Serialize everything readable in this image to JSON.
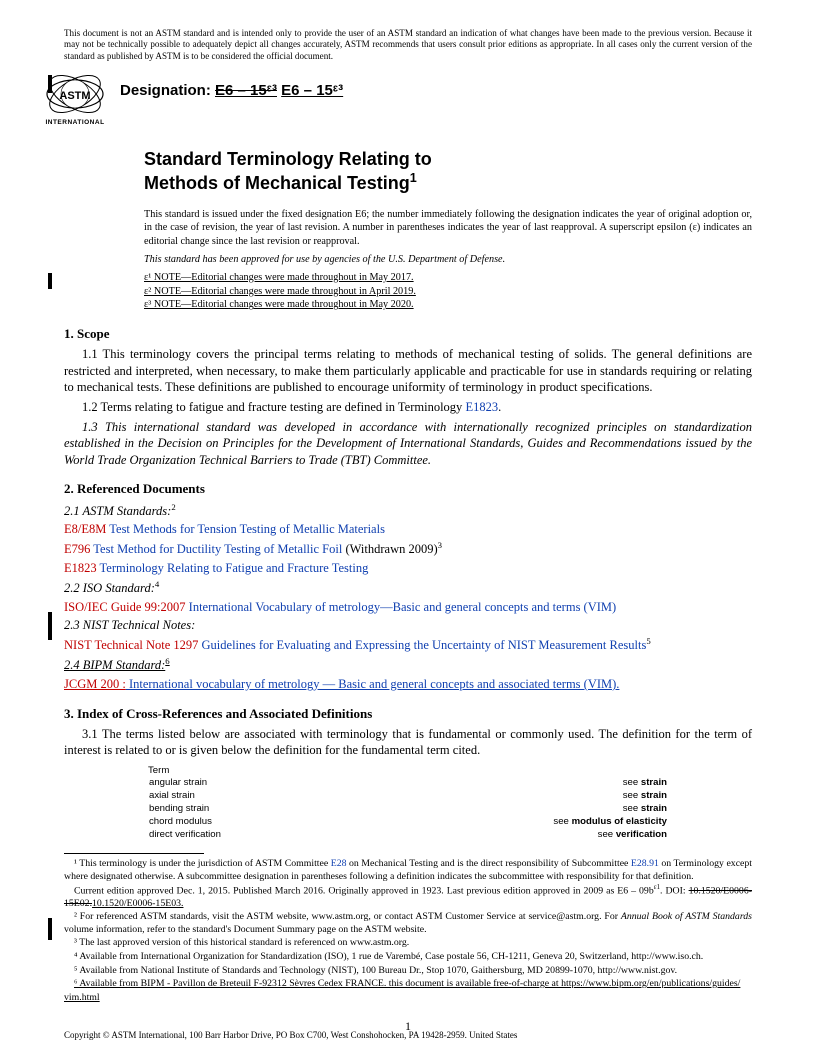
{
  "disclaimer": "This document is not an ASTM standard and is intended only to provide the user of an ASTM standard an indication of what changes have been made to the previous version. Because it may not be technically possible to adequately depict all changes accurately, ASTM recommends that users consult prior editions as appropriate. In all cases only the current version of the standard as published by ASTM is to be considered the official document.",
  "logo_text_top": "ASTM",
  "logo_text_bottom": "INTERNATIONAL",
  "designation_label": "Designation: ",
  "designation_old": "E6 – 15ᵋ³",
  "designation_new": "E6 – 15ᵋ³",
  "title_line1": "Standard Terminology Relating to",
  "title_line2": "Methods of Mechanical Testing",
  "title_sup": "1",
  "issuance": "This standard is issued under the fixed designation E6; the number immediately following the designation indicates the year of original adoption or, in the case of revision, the year of last revision. A number in parentheses indicates the year of last reapproval. A superscript epsilon (ε) indicates an editorial change since the last revision or reapproval.",
  "dod": "This standard has been approved for use by agencies of the U.S. Department of Defense.",
  "eps1": "ε¹ NOTE—Editorial changes were made throughout in May 2017.",
  "eps2": "ε² NOTE—Editorial changes were made throughout in April 2019.",
  "eps3": "ε³ NOTE—Editorial changes were made throughout in May 2020.",
  "sec1_h": "1.  Scope",
  "sec1_1": "1.1  This terminology covers the principal terms relating to methods of mechanical testing of solids. The general definitions are restricted and interpreted, when necessary, to make them particularly applicable and practicable for use in standards requiring or relating to mechanical tests. These definitions are published to encourage uniformity of terminology in product specifications.",
  "sec1_2a": "1.2  Terms relating to fatigue and fracture testing are defined in Terminology ",
  "sec1_2b": "E1823",
  "sec1_2c": ".",
  "sec1_3": "1.3  This international standard was developed in accordance with internationally recognized principles on standardization established in the Decision on Principles for the Development of International Standards, Guides and Recommendations issued by the World Trade Organization Technical Barriers to Trade (TBT) Committee.",
  "sec2_h": "2.  Referenced Documents",
  "ref21": "2.1  ASTM Standards:",
  "ref21_sup": "2",
  "r_e8_code": "E8/E8M",
  "r_e8_title": " Test Methods for Tension Testing of Metallic Materials",
  "r_e796_code": "E796",
  "r_e796_title": " Test Method for Ductility Testing of Metallic Foil",
  "r_e796_tail": " (Withdrawn 2009)",
  "r_e796_sup": "3",
  "r_e1823_code": "E1823",
  "r_e1823_title": " Terminology Relating to Fatigue and Fracture Testing",
  "ref22": "2.2  ISO Standard:",
  "ref22_sup": "4",
  "r_iso_code": "ISO/IEC Guide 99:2007",
  "r_iso_title": " International Vocabulary of metrology—Basic and general concepts and terms (VIM)",
  "ref23": "2.3  NIST Technical Notes:",
  "r_nist_code": "NIST Technical Note 1297",
  "r_nist_title": " Guidelines for Evaluating and Expressing the Uncertainty of NIST Measurement Results",
  "r_nist_sup": "5",
  "ref24": "2.4  BIPM Standard:",
  "ref24_sup": "6",
  "r_jcgm_code": "JCGM 200 :",
  "r_jcgm_title": " International vocabulary of metrology — Basic and general concepts and associated terms (VIM).",
  "sec3_h": "3.   Index of Cross-References and Associated Definitions",
  "sec3_1": "3.1  The terms listed below are associated with terminology that is fundamental or commonly used. The definition for the term of interest is related to or is given below the definition for the fundamental term cited.",
  "xref_hdr": "Term",
  "xref_rows": [
    {
      "term": "angular strain",
      "see": "see ",
      "target": "strain"
    },
    {
      "term": "axial strain",
      "see": "see ",
      "target": "strain"
    },
    {
      "term": "bending strain",
      "see": "see ",
      "target": "strain"
    },
    {
      "term": "chord modulus",
      "see": "see ",
      "target": "modulus of elasticity"
    },
    {
      "term": "direct verification",
      "see": "see ",
      "target": "verification"
    }
  ],
  "fn1a": "¹ This terminology is under the jurisdiction of ASTM Committee ",
  "fn1_link1": "E28",
  "fn1b": " on Mechanical Testing and is the direct responsibility of Subcommittee ",
  "fn1_link2": "E28.91",
  "fn1c": " on Terminology except where designated otherwise. A subcommittee designation in parentheses following a definition indicates the subcommittee with responsibility for that definition.",
  "fn1d_a": "Current edition approved Dec. 1, 2015. Published March 2016. Originally approved in 1923. Last previous edition approved in 2009 as E6 – 09b",
  "fn1d_b": "ε1",
  "fn1d_c": ". DOI: ",
  "fn1d_old": "10.1520/E0006-15E02.",
  "fn1d_new": "10.1520/E0006-15E03.",
  "fn2": "² For referenced ASTM standards, visit the ASTM website, www.astm.org, or contact ASTM Customer Service at service@astm.org. For Annual Book of ASTM Standards volume information, refer to the standard's Document Summary page on the ASTM website.",
  "fn2_ital": "Annual Book of ASTM Standards",
  "fn3": "³ The last approved version of this historical standard is referenced on www.astm.org.",
  "fn4": "⁴ Available from International Organization for Standardization (ISO), 1 rue de Varembé, Case postale 56, CH-1211, Geneva 20, Switzerland, http://www.iso.ch.",
  "fn5": "⁵ Available from National Institute of Standards and Technology (NIST), 100 Bureau Dr., Stop 1070, Gaithersburg, MD 20899-1070, http://www.nist.gov.",
  "fn6a": "⁶ Available from BIPM - Pavillon de Breteuil F-92312 Sèvres Cedex FRANCE. this document is available free-of-charge at https://www.bipm.org/en/publications/guides/",
  "fn6b": "vim.html",
  "copyright": "Copyright © ASTM International, 100 Barr Harbor Drive, PO Box C700, West Conshohocken, PA 19428-2959. United States",
  "page_num": "1"
}
